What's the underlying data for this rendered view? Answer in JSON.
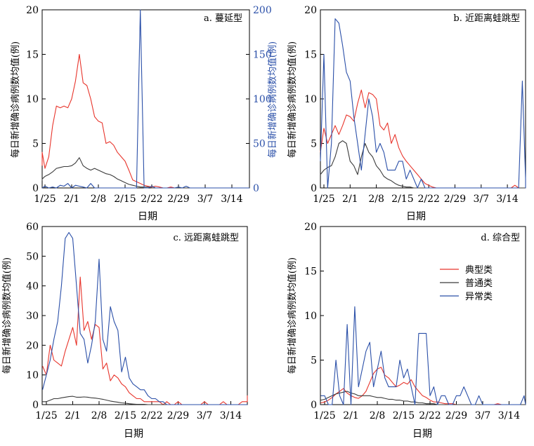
{
  "colors": {
    "typical": "#e8352c",
    "normal": "#3a3a3a",
    "abnormal": "#2a4fa8"
  },
  "legend": [
    "典型类",
    "普通类",
    "异常类"
  ],
  "x_ticks": [
    "1/25",
    "2/1",
    "2/8",
    "2/15",
    "2/22",
    "2/29",
    "3/7",
    "3/14"
  ],
  "chart_data": [
    {
      "type": "line",
      "panel": "a",
      "title": "a. 蔓延型",
      "xlabel": "日期",
      "ylabel": "每日新增确诊病例数均值(例)",
      "y2label": "每日新增确诊病例数均值(例)",
      "x_start": "1/23",
      "ylim": [
        0,
        20
      ],
      "yticks": [
        0,
        5,
        10,
        15,
        20
      ],
      "y2lim": [
        0,
        200
      ],
      "y2ticks": [
        0,
        50,
        100,
        150,
        200
      ],
      "series": [
        {
          "name": "典型类",
          "axis": "left",
          "values": [
            2.5,
            4,
            2.2,
            3.5,
            7,
            9.2,
            9,
            9.2,
            9,
            10,
            12,
            15,
            11.8,
            11.5,
            10,
            8,
            7.5,
            7.3,
            5,
            5.2,
            4.8,
            4,
            3.5,
            3,
            2,
            0.9,
            0.7,
            0.5,
            0.3,
            0.2,
            0.1,
            0.2,
            0.1,
            0,
            0,
            0.1,
            0,
            0,
            0,
            0,
            0,
            0,
            0,
            0,
            0,
            0,
            0,
            0,
            0,
            0,
            0,
            0,
            0,
            0,
            0,
            0,
            0,
            0,
            0
          ]
        },
        {
          "name": "普通类",
          "axis": "left",
          "values": [
            0.8,
            1,
            1.3,
            1.5,
            1.8,
            2.2,
            2.3,
            2.4,
            2.4,
            2.5,
            2.8,
            3.4,
            2.5,
            2.2,
            2,
            2.2,
            2,
            1.8,
            1.6,
            1.5,
            1.3,
            1,
            0.8,
            0.6,
            0.4,
            0.3,
            0.2,
            0.1,
            0.1,
            0.1,
            0,
            0,
            0,
            0,
            0,
            0,
            0,
            0,
            0,
            0,
            0,
            0,
            0,
            0,
            0,
            0,
            0,
            0,
            0,
            0,
            0,
            0,
            0,
            0,
            0,
            0,
            0,
            0,
            0
          ]
        },
        {
          "name": "异常类",
          "axis": "right",
          "values": [
            0,
            0,
            2,
            0,
            1,
            0,
            3,
            2,
            5,
            0,
            3,
            2,
            1,
            0,
            5,
            0,
            0,
            0,
            0,
            0,
            0,
            0,
            0,
            0,
            0,
            0,
            0,
            200,
            0,
            0,
            2,
            0,
            0,
            0,
            0,
            0,
            0,
            1,
            0,
            2,
            0,
            0,
            0,
            0,
            0,
            0,
            0,
            0,
            0,
            0,
            0,
            0,
            0,
            0,
            0,
            0,
            0,
            0,
            0
          ]
        }
      ]
    },
    {
      "type": "line",
      "panel": "b",
      "title": "b. 近距离蛙跳型",
      "xlabel": "日期",
      "ylabel": "每日新增确诊病例数均值(例)",
      "x_start": "1/24",
      "ylim": [
        0,
        20
      ],
      "yticks": [
        0,
        5,
        10,
        15,
        20
      ],
      "series": [
        {
          "name": "典型类",
          "values": [
            4,
            6.7,
            5,
            6,
            7,
            6,
            7,
            8.2,
            8,
            7.5,
            9.5,
            11,
            9,
            10.7,
            10.5,
            10,
            7,
            6.5,
            7.3,
            5,
            6,
            4.5,
            3.6,
            3,
            2.5,
            2,
            1.5,
            1,
            0.5,
            0.3,
            0.1,
            0,
            0,
            0,
            0,
            0,
            0,
            0,
            0,
            0,
            0,
            0,
            0,
            0,
            0,
            0,
            0,
            0,
            0,
            0,
            0,
            0,
            0.3,
            0,
            0,
            0,
            0,
            0,
            0,
            0
          ]
        },
        {
          "name": "普通类",
          "values": [
            1.5,
            2,
            2.3,
            2.5,
            3.5,
            5,
            5.3,
            5,
            3,
            2.5,
            1.5,
            3.5,
            5,
            4,
            3.5,
            2.5,
            2,
            1.3,
            1,
            0.8,
            0.5,
            0.3,
            0.2,
            0.1,
            0.1,
            0,
            0,
            0,
            0,
            0,
            0,
            0,
            0,
            0,
            0,
            0,
            0,
            0,
            0,
            0,
            0,
            0,
            0,
            0,
            0,
            0,
            0,
            0,
            0,
            0,
            0,
            0,
            0,
            0,
            0,
            0,
            0,
            0,
            0,
            0
          ]
        },
        {
          "name": "异常类",
          "values": [
            3,
            15,
            0,
            5,
            19,
            18.5,
            16,
            13,
            12,
            8,
            5,
            2,
            6,
            10,
            8,
            4,
            5,
            4,
            2,
            2,
            2,
            3,
            3,
            1,
            2,
            1,
            0,
            1,
            0,
            0,
            0,
            0,
            0,
            0,
            0,
            0,
            0,
            0,
            0,
            0,
            0,
            0,
            0,
            0,
            0,
            0,
            0,
            0,
            0,
            0,
            0,
            0,
            0,
            0,
            12,
            1,
            0,
            1,
            0,
            1
          ]
        }
      ]
    },
    {
      "type": "line",
      "panel": "c",
      "title": "c. 远距离蛙跳型",
      "xlabel": "日期",
      "ylabel": "每日新增确诊病例数均值(例)",
      "x_start": "1/24",
      "ylim": [
        0,
        60
      ],
      "yticks": [
        0,
        10,
        20,
        30,
        40,
        50,
        60
      ],
      "series": [
        {
          "name": "典型类",
          "values": [
            13,
            10,
            20,
            15,
            14,
            13,
            18,
            22,
            26,
            20,
            43,
            25,
            28,
            22,
            27,
            26,
            12,
            14,
            8,
            10,
            9,
            7,
            6,
            4,
            3,
            2,
            2,
            1,
            1,
            1,
            1,
            1,
            0,
            1,
            0,
            0,
            1,
            0,
            0,
            0,
            0,
            0,
            0,
            1,
            0,
            0,
            0,
            0,
            1,
            0,
            0,
            0,
            0,
            1,
            1,
            1,
            2,
            2,
            3,
            2
          ]
        },
        {
          "name": "普通类",
          "values": [
            1,
            1,
            1.5,
            2,
            2,
            2.3,
            2.5,
            2.7,
            2.8,
            2.5,
            2.5,
            2.6,
            2.5,
            2.3,
            2.2,
            2,
            1.8,
            1.5,
            1.2,
            1,
            0.8,
            0.6,
            0.5,
            0.3,
            0.2,
            0.1,
            0.1,
            0.1,
            0,
            0,
            0,
            0,
            0,
            0,
            0,
            0,
            0,
            0,
            0,
            0,
            0,
            0,
            0,
            0,
            0,
            0,
            0,
            0,
            0,
            0,
            0,
            0,
            0,
            0,
            0,
            0,
            0,
            0,
            0,
            0
          ]
        },
        {
          "name": "异常类",
          "values": [
            5,
            10,
            15,
            22,
            28,
            40,
            56,
            58,
            56,
            40,
            24,
            22,
            14,
            20,
            28,
            49,
            22,
            18,
            33,
            28,
            25,
            11,
            16,
            9,
            7,
            6,
            5,
            5,
            3,
            2,
            2,
            1,
            1,
            0,
            0,
            0,
            0,
            0,
            0,
            0,
            0,
            0,
            0,
            0,
            0,
            0,
            0,
            0,
            0,
            0,
            0,
            0,
            0,
            0,
            0,
            0,
            0,
            0,
            0,
            0
          ]
        }
      ]
    },
    {
      "type": "line",
      "panel": "d",
      "title": "d. 综合型",
      "xlabel": "日期",
      "ylabel": "每日新增确诊病例数均值(例)",
      "x_start": "1/24",
      "ylim": [
        0,
        20
      ],
      "yticks": [
        0,
        5,
        10,
        15,
        20
      ],
      "series": [
        {
          "name": "典型类",
          "values": [
            0.2,
            0.3,
            0.5,
            0.8,
            1.2,
            1.5,
            1.8,
            1.3,
            1,
            0.8,
            0.7,
            1,
            1.5,
            2.5,
            3.5,
            4,
            4.2,
            3.3,
            3,
            2.5,
            2,
            2.2,
            2.5,
            2.3,
            2.8,
            2,
            1.5,
            1,
            0.8,
            0.5,
            0.3,
            0.3,
            0.2,
            0.1,
            0.1,
            0.1,
            0,
            0,
            0,
            0,
            0,
            0,
            0,
            0,
            0,
            0,
            0,
            0.1,
            0,
            0,
            0,
            0,
            0,
            0,
            0,
            0,
            0,
            0,
            0,
            0
          ]
        },
        {
          "name": "普通类",
          "values": [
            0.5,
            0.6,
            0.8,
            1,
            1.2,
            1.3,
            1.4,
            1.5,
            1.3,
            1.2,
            1,
            1,
            1,
            1,
            0.9,
            0.8,
            0.8,
            0.7,
            0.6,
            0.6,
            0.5,
            0.5,
            0.4,
            0.4,
            0.3,
            0.3,
            0.2,
            0.2,
            0.1,
            0.1,
            0.1,
            0,
            0,
            0,
            0,
            0,
            0,
            0,
            0,
            0,
            0,
            0,
            0,
            0,
            0,
            0,
            0,
            0,
            0,
            0,
            0,
            0,
            0,
            0,
            0,
            0,
            0,
            0,
            0,
            0
          ]
        },
        {
          "name": "异常类",
          "values": [
            1,
            1,
            0,
            0,
            5,
            1,
            0,
            9,
            0,
            11,
            2,
            4,
            6,
            7,
            2,
            4,
            6,
            3,
            2,
            2,
            2,
            5,
            3,
            4,
            2,
            0,
            8,
            8,
            8,
            1,
            2,
            0,
            1,
            1,
            0,
            0,
            1,
            1,
            2,
            1,
            0,
            0,
            1,
            0,
            0,
            0,
            0,
            0,
            0,
            0,
            0,
            0,
            0,
            0,
            1,
            0,
            0,
            0,
            0,
            0
          ]
        }
      ]
    }
  ]
}
